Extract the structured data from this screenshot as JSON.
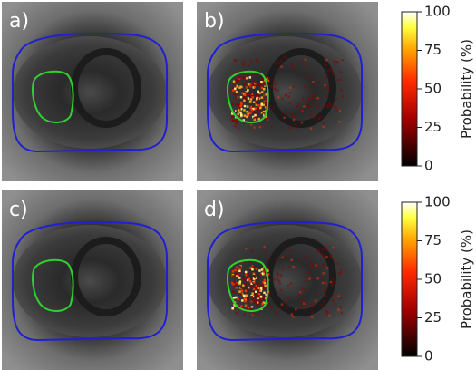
{
  "panels": [
    {
      "label": "a)"
    },
    {
      "label": "b)"
    },
    {
      "label": "c)"
    },
    {
      "label": "d)"
    }
  ],
  "colorbars": [
    {
      "label": "Probability (%)",
      "ticks": [
        0,
        25,
        50,
        75,
        100
      ]
    },
    {
      "label": "Probability (%)",
      "ticks": [
        0,
        25,
        50,
        75,
        100
      ]
    }
  ]
}
